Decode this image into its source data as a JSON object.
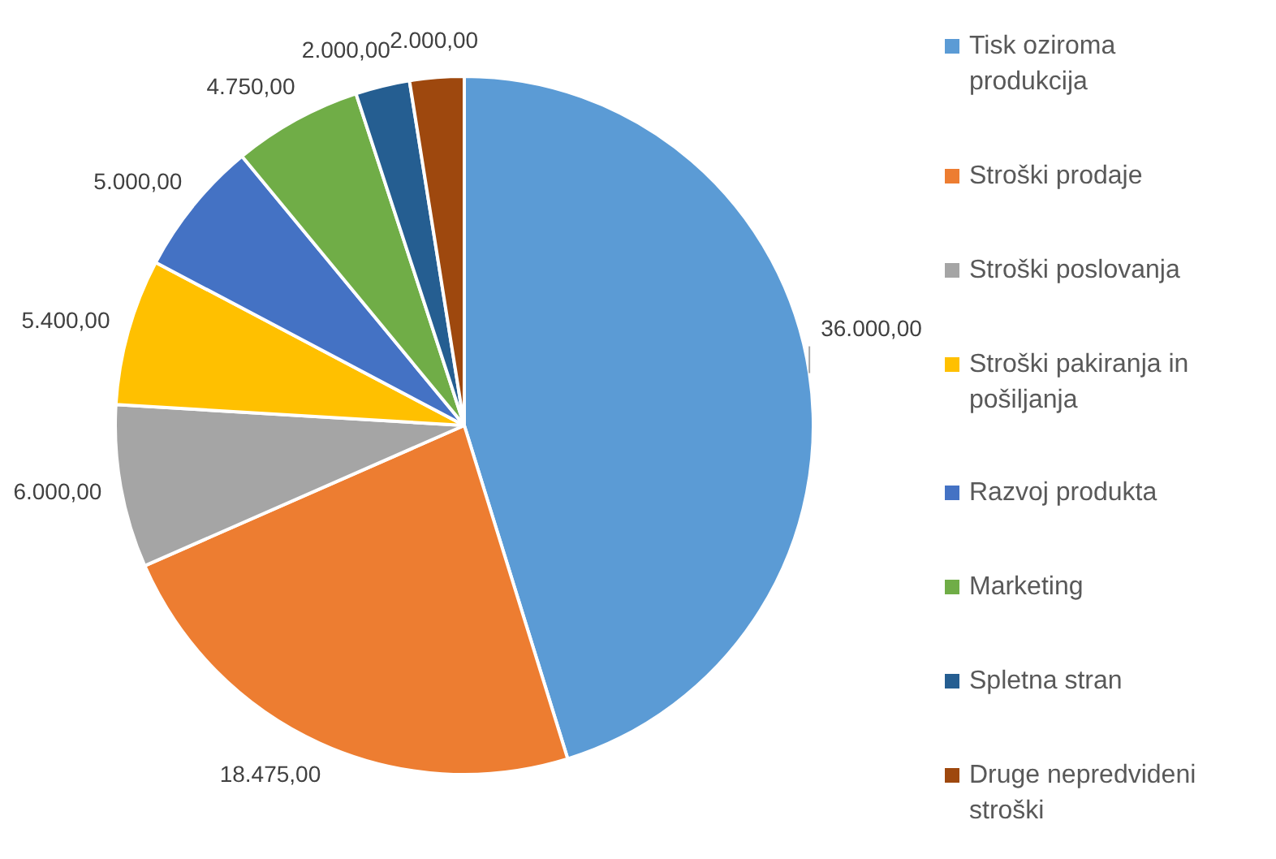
{
  "chart_data": {
    "type": "pie",
    "categories": [
      "Tisk oziroma produkcija",
      "Stroški prodaje",
      "Stroški poslovanja",
      "Stroški pakiranja in pošiljanja",
      "Razvoj produkta",
      "Marketing",
      "Spletna stran",
      "Druge nepredvideni stroški"
    ],
    "values": [
      36000,
      18475,
      6000,
      5400,
      5000,
      4750,
      2000,
      2000
    ],
    "colors": [
      "#5b9bd5",
      "#ed7d31",
      "#a5a5a5",
      "#ffc000",
      "#4472c4",
      "#70ad47",
      "#255e91",
      "#9e480e"
    ],
    "value_labels": [
      "36.000,00",
      "18.475,00",
      "6.000,00",
      "5.400,00",
      "5.000,00",
      "4.750,00",
      "2.000,00",
      "2.000,00"
    ],
    "legend": "right"
  }
}
